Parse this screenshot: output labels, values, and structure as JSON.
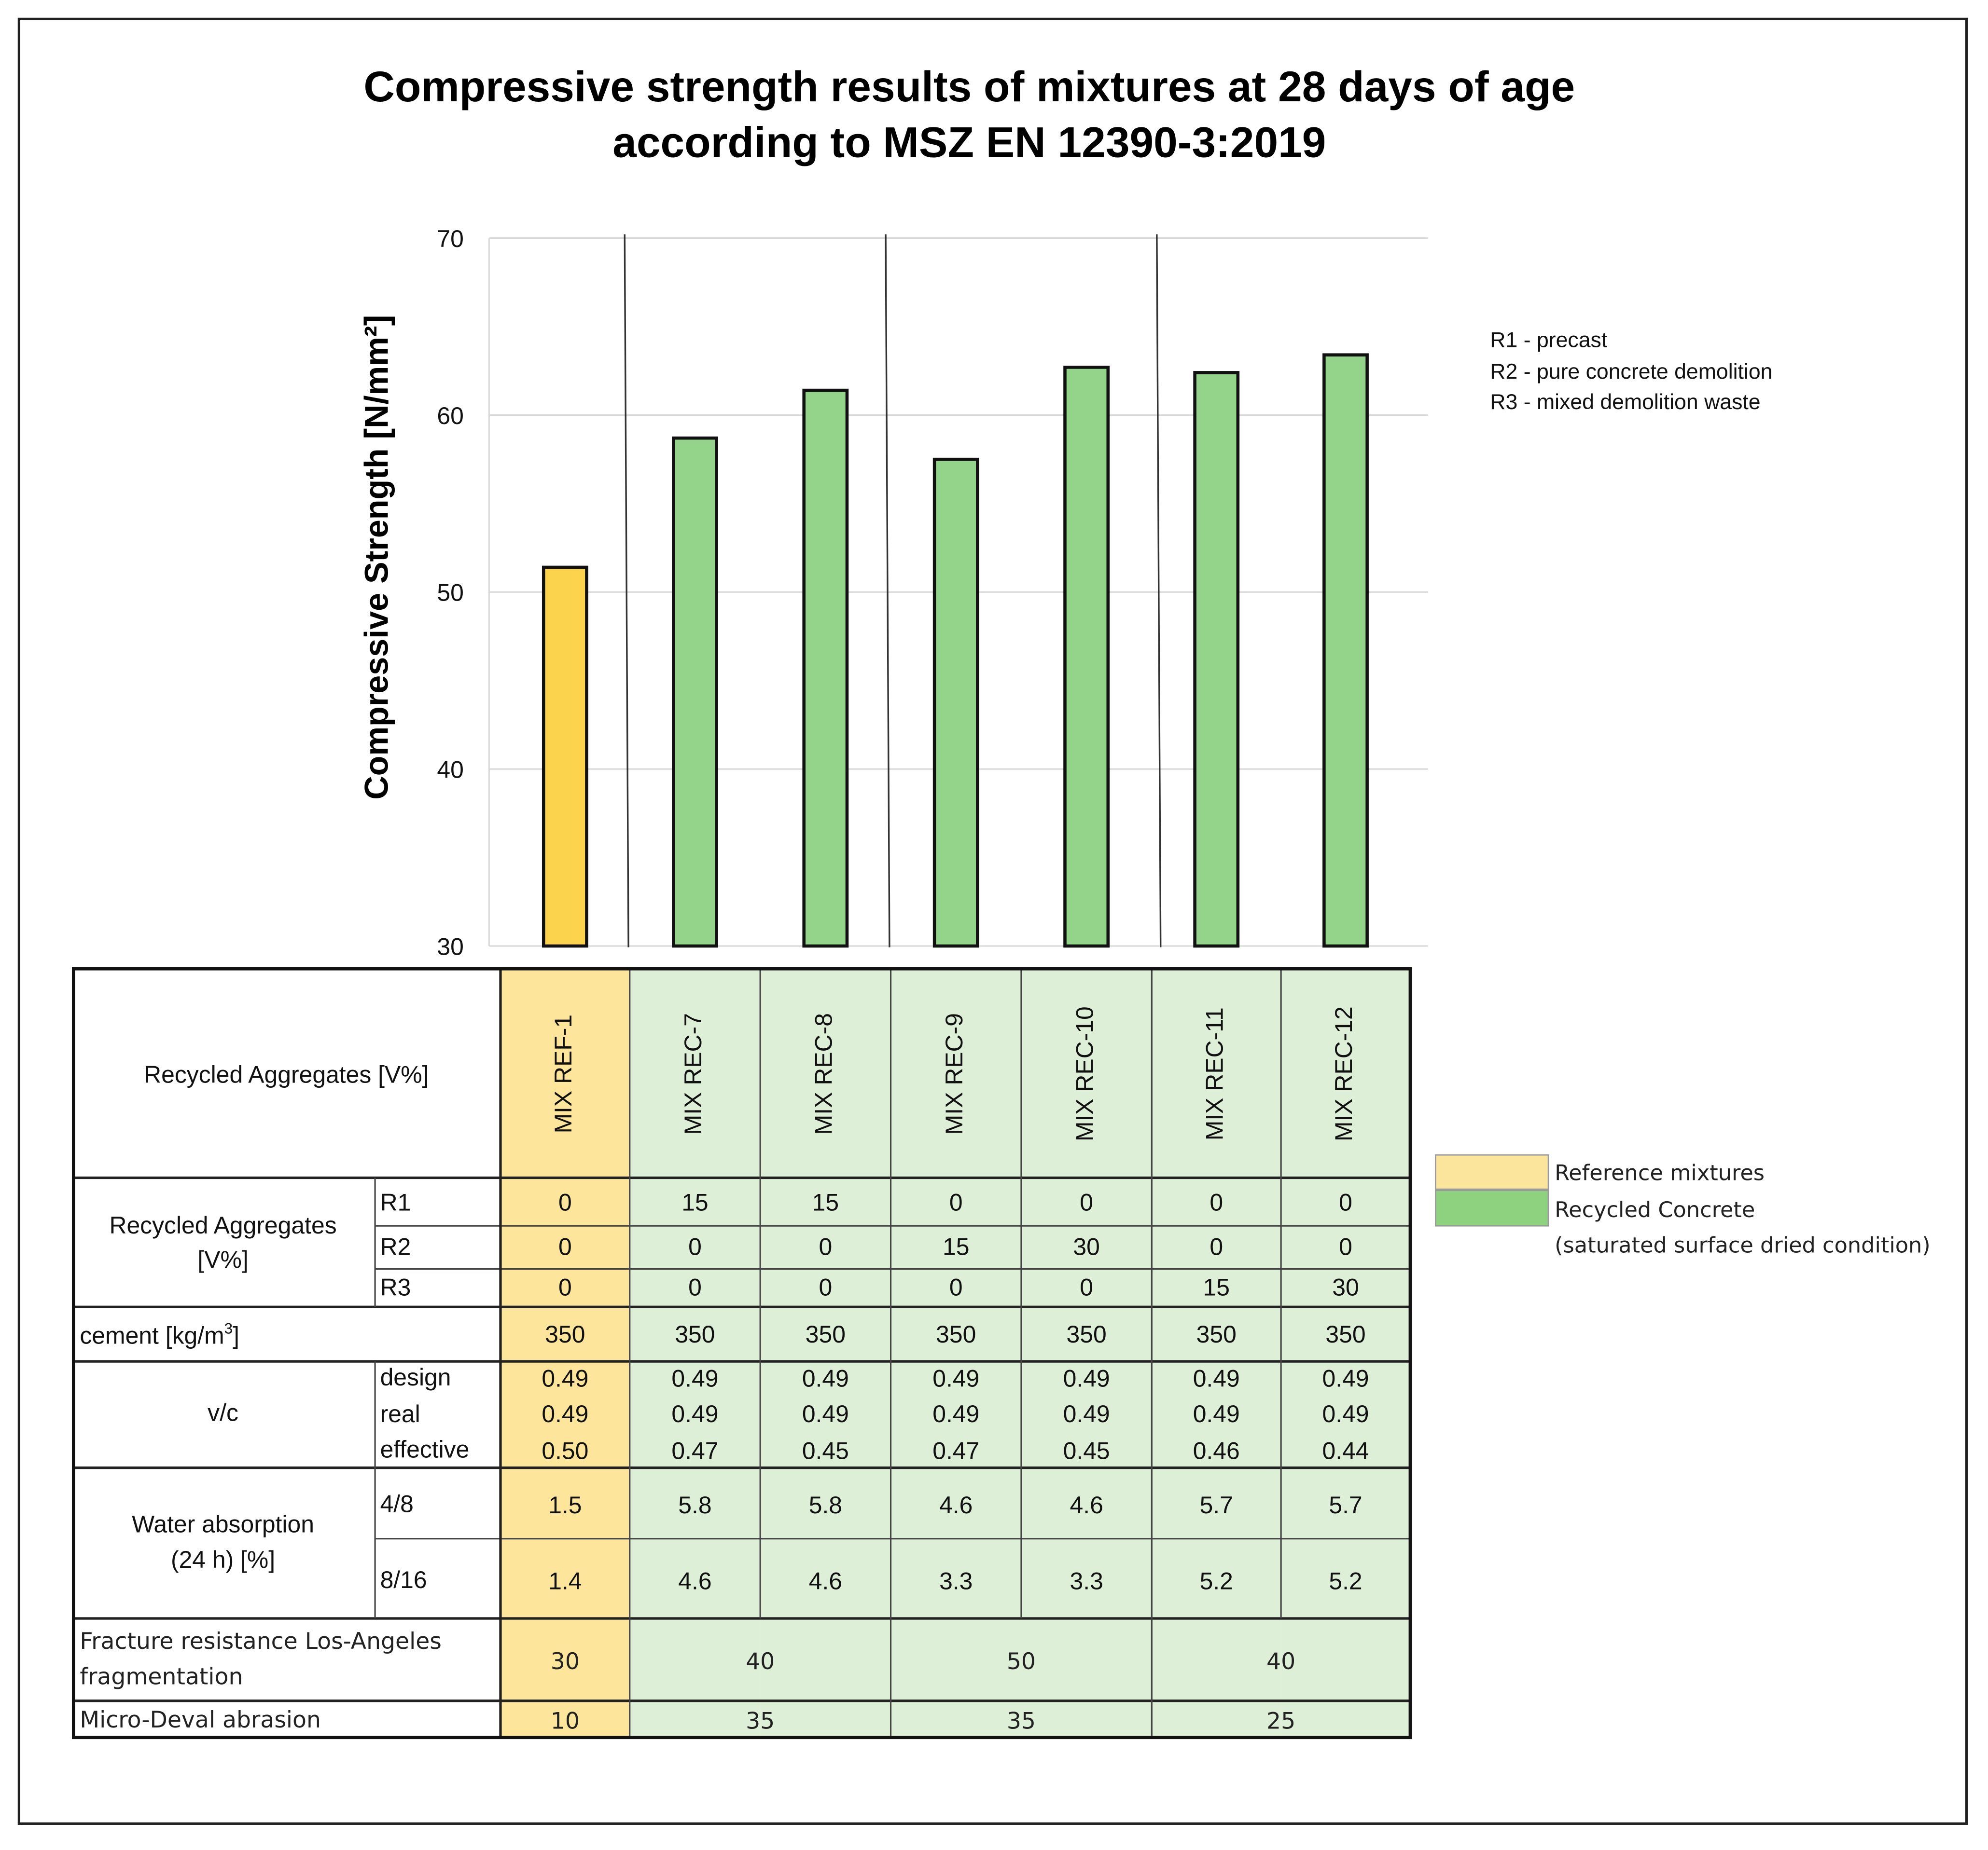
{
  "chart_data": {
    "type": "bar",
    "title": "Compressive strength results of mixtures at 28 days of age",
    "subtitle": "according to MSZ EN 12390-3:2019",
    "ylabel": "Compressive Strength [N/mm²]",
    "xlabel": "",
    "ylim": [
      30,
      70
    ],
    "yticks": [
      "30",
      "40",
      "50",
      "60",
      "70"
    ],
    "grid": true,
    "categories": [
      "MIX REF-1",
      "MIX REC-7",
      "MIX REC-8",
      "MIX REC-9",
      "MIX REC-10",
      "MIX REC-11",
      "MIX REC-12"
    ],
    "values": [
      51.4,
      58.7,
      61.4,
      57.5,
      62.7,
      62.4,
      63.4
    ],
    "bar_types": [
      "reference",
      "recycled",
      "recycled",
      "recycled",
      "recycled",
      "recycled",
      "recycled"
    ],
    "notes": [
      "R1 - precast",
      "R2 - pure concrete demolition",
      "R3 - mixed demolition waste"
    ],
    "legend": [
      {
        "label": "Reference mixtures",
        "color": "#fbe59d"
      },
      {
        "label": "Recycled Concrete",
        "color": "#8ed17e"
      }
    ],
    "legend_note": "(saturated surface dried condition)",
    "colors": {
      "reference_bar": "#fcd34d",
      "recycled_bar": "#93d38a",
      "reference_cell": "#fde59b",
      "recycled_cell": "#ddefd6"
    }
  },
  "table": {
    "header_label": "Recycled Aggregates [V%]",
    "rows": {
      "aggregates_label": "Recycled Aggregates [V%]",
      "aggregates_label_l1": "Recycled Aggregates",
      "aggregates_label_l2": "[V%]",
      "r1_label": "R1",
      "r2_label": "R2",
      "r3_label": "R3",
      "r1": [
        "0",
        "15",
        "15",
        "0",
        "0",
        "0",
        "0"
      ],
      "r2": [
        "0",
        "0",
        "0",
        "15",
        "30",
        "0",
        "0"
      ],
      "r3": [
        "0",
        "0",
        "0",
        "0",
        "0",
        "15",
        "30"
      ],
      "cement_label": "cement [kg/m",
      "cement_sup": "3",
      "cement_close": "]",
      "cement": [
        "350",
        "350",
        "350",
        "350",
        "350",
        "350",
        "350"
      ],
      "vc_label": "v/c",
      "design_label": "design",
      "real_label": "real",
      "effective_label": "effective",
      "design": [
        "0.49",
        "0.49",
        "0.49",
        "0.49",
        "0.49",
        "0.49",
        "0.49"
      ],
      "real": [
        "0.49",
        "0.49",
        "0.49",
        "0.49",
        "0.49",
        "0.49",
        "0.49"
      ],
      "effective": [
        "0.50",
        "0.47",
        "0.45",
        "0.47",
        "0.45",
        "0.46",
        "0.44"
      ],
      "water_label_l1": "Water absorption",
      "water_label_l2": "(24 h) [%]",
      "w48_label": "4/8",
      "w816_label": "8/16",
      "w48": [
        "1.5",
        "5.8",
        "5.8",
        "4.6",
        "4.6",
        "5.7",
        "5.7"
      ],
      "w816": [
        "1.4",
        "4.6",
        "4.6",
        "3.3",
        "3.3",
        "5.2",
        "5.2"
      ],
      "fracture_label_l1": "Fracture resistance Los-Angeles",
      "fracture_label_l2": "fragmentation",
      "fracture": [
        "30",
        "40",
        "50",
        "40"
      ],
      "microdeval_label": "Micro-Deval abrasion",
      "microdeval": [
        "10",
        "35",
        "35",
        "25"
      ]
    }
  }
}
